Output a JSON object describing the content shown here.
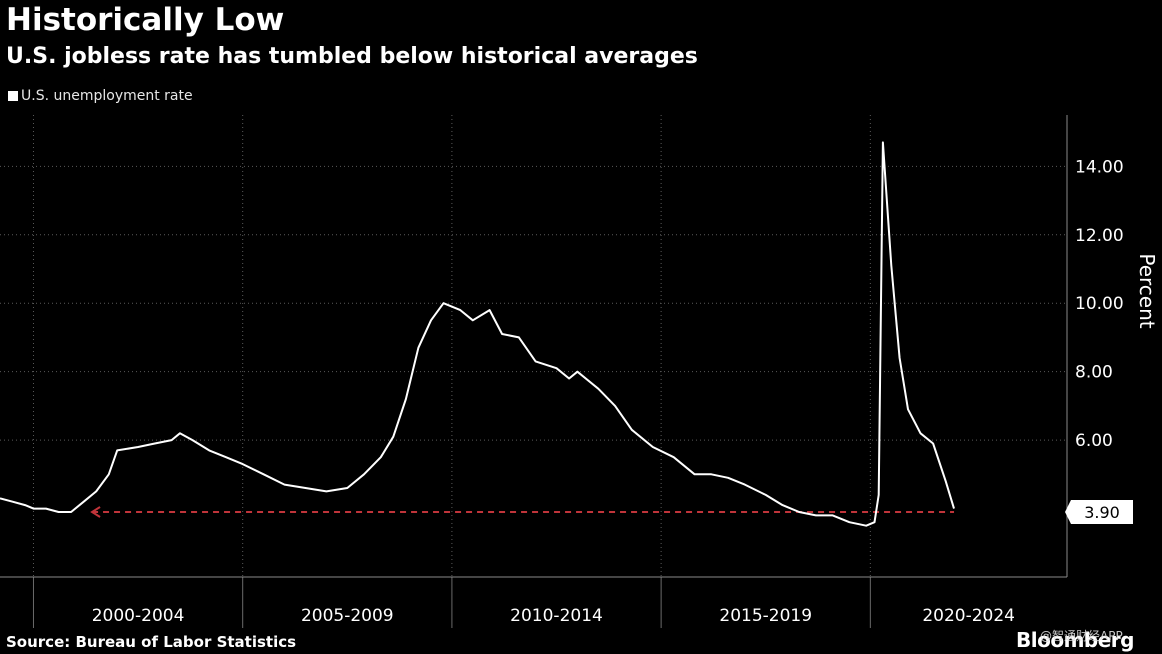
{
  "chart_data": {
    "type": "line",
    "title": "Historically Low",
    "subtitle": "U.S. jobless rate has tumbled below historical averages",
    "ylabel": "Percent",
    "ylim": [
      2,
      15.5
    ],
    "yticks": [
      6,
      8,
      10,
      12,
      14
    ],
    "ytick_labels": [
      "6.00",
      "8.00",
      "10.00",
      "12.00",
      "14.00"
    ],
    "xlim": [
      1999.2,
      2024.7
    ],
    "x_period_labels": [
      "2000-2004",
      "2005-2009",
      "2010-2014",
      "2015-2019",
      "2020-2024"
    ],
    "grid": true,
    "legend": "top-left",
    "series": [
      {
        "name": "U.S. unemployment rate",
        "color": "#ffffff",
        "points": [
          [
            1999.2,
            4.3
          ],
          [
            1999.5,
            4.2
          ],
          [
            1999.8,
            4.1
          ],
          [
            2000.0,
            4.0
          ],
          [
            2000.3,
            4.0
          ],
          [
            2000.6,
            3.9
          ],
          [
            2000.9,
            3.9
          ],
          [
            2001.2,
            4.2
          ],
          [
            2001.5,
            4.5
          ],
          [
            2001.8,
            5.0
          ],
          [
            2002.0,
            5.7
          ],
          [
            2002.5,
            5.8
          ],
          [
            2002.9,
            5.9
          ],
          [
            2003.3,
            6.0
          ],
          [
            2003.5,
            6.2
          ],
          [
            2003.8,
            6.0
          ],
          [
            2004.2,
            5.7
          ],
          [
            2004.6,
            5.5
          ],
          [
            2005.0,
            5.3
          ],
          [
            2005.5,
            5.0
          ],
          [
            2006.0,
            4.7
          ],
          [
            2006.5,
            4.6
          ],
          [
            2007.0,
            4.5
          ],
          [
            2007.5,
            4.6
          ],
          [
            2007.9,
            5.0
          ],
          [
            2008.3,
            5.5
          ],
          [
            2008.6,
            6.1
          ],
          [
            2008.9,
            7.2
          ],
          [
            2009.2,
            8.7
          ],
          [
            2009.5,
            9.5
          ],
          [
            2009.8,
            10.0
          ],
          [
            2010.2,
            9.8
          ],
          [
            2010.5,
            9.5
          ],
          [
            2010.9,
            9.8
          ],
          [
            2011.2,
            9.1
          ],
          [
            2011.6,
            9.0
          ],
          [
            2012.0,
            8.3
          ],
          [
            2012.5,
            8.1
          ],
          [
            2012.8,
            7.8
          ],
          [
            2013.0,
            8.0
          ],
          [
            2013.5,
            7.5
          ],
          [
            2013.9,
            7.0
          ],
          [
            2014.3,
            6.3
          ],
          [
            2014.8,
            5.8
          ],
          [
            2015.3,
            5.5
          ],
          [
            2015.8,
            5.0
          ],
          [
            2016.2,
            5.0
          ],
          [
            2016.6,
            4.9
          ],
          [
            2017.0,
            4.7
          ],
          [
            2017.5,
            4.4
          ],
          [
            2017.9,
            4.1
          ],
          [
            2018.3,
            3.9
          ],
          [
            2018.7,
            3.8
          ],
          [
            2019.1,
            3.8
          ],
          [
            2019.5,
            3.6
          ],
          [
            2019.9,
            3.5
          ],
          [
            2020.1,
            3.6
          ],
          [
            2020.2,
            4.4
          ],
          [
            2020.3,
            14.7
          ],
          [
            2020.5,
            11.1
          ],
          [
            2020.7,
            8.4
          ],
          [
            2020.9,
            6.9
          ],
          [
            2021.2,
            6.2
          ],
          [
            2021.5,
            5.9
          ],
          [
            2021.8,
            4.8
          ],
          [
            2022.0,
            4.0
          ]
        ]
      }
    ],
    "reference_line": {
      "value": 3.9,
      "label": "3.90",
      "x_from": 2001.4,
      "color": "#c0343a"
    }
  },
  "source": "Source: Bureau of Labor Statistics",
  "brand": "Bloomberg",
  "watermark": "@智通财经APP"
}
